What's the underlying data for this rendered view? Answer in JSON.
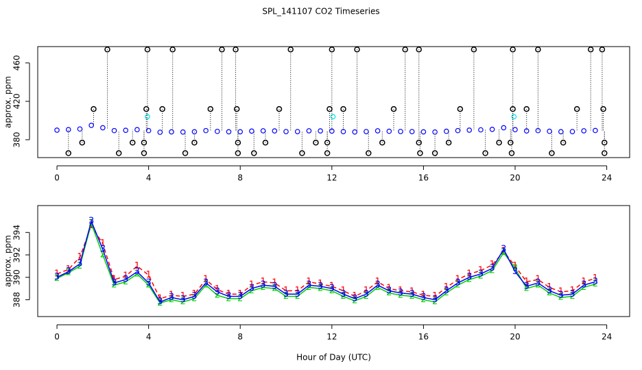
{
  "chart_data": [
    {
      "type": "scatter",
      "title": "SPL_141107  CO2 Timeseries",
      "ylabel": "approx. ppm",
      "xlim": [
        -0.84,
        25.0
      ],
      "xticks": [
        0,
        4,
        8,
        12,
        16,
        20,
        24
      ],
      "ylim": [
        361.4,
        477
      ],
      "yticks": [
        380,
        420,
        460
      ],
      "series": [
        {
          "color": "#0000ff",
          "x": [
            0,
            0.5,
            1,
            1.5,
            2,
            2.5,
            3,
            3.5,
            4,
            4.5,
            5,
            5.5,
            6,
            6.5,
            7,
            7.5,
            8,
            8.5,
            9,
            9.5,
            10,
            10.5,
            11,
            11.5,
            12,
            12.5,
            13,
            13.5,
            14,
            14.5,
            15,
            15.5,
            16,
            16.5,
            17,
            17.5,
            18,
            18.5,
            19,
            19.5,
            20,
            20.5,
            21,
            21.5,
            22,
            22.5,
            23,
            23.5
          ],
          "values": [
            390.0,
            390.5,
            391.2,
            395.0,
            392.5,
            389.5,
            389.8,
            390.5,
            389.5,
            387.8,
            388.2,
            388.0,
            388.3,
            389.5,
            388.7,
            388.3,
            388.3,
            389.0,
            389.3,
            389.2,
            388.5,
            388.5,
            389.3,
            389.2,
            389.0,
            388.5,
            388.1,
            388.5,
            389.3,
            388.8,
            388.6,
            388.5,
            388.2,
            388.0,
            388.8,
            389.5,
            390.0,
            390.3,
            390.8,
            392.5,
            390.5,
            389.2,
            389.5,
            388.8,
            388.4,
            388.5,
            389.3,
            389.6
          ]
        },
        {
          "color": "#00e5ee",
          "x": [
            3.95,
            12.05,
            19.95
          ],
          "values": [
            404,
            404,
            404
          ]
        },
        {
          "color": "#000000",
          "stems": true,
          "x": [
            2.2,
            3.95,
            5.05,
            7.2,
            7.8,
            10.2,
            12.0,
            13.1,
            15.2,
            15.8,
            18.2,
            19.9,
            21.0,
            23.3,
            23.8,
            1.6,
            3.9,
            4.6,
            6.7,
            7.85,
            9.7,
            11.9,
            12.5,
            14.7,
            17.6,
            19.9,
            20.5,
            22.7,
            23.85,
            1.1,
            3.3,
            3.8,
            6.0,
            7.9,
            9.1,
            11.3,
            11.8,
            14.2,
            15.8,
            17.1,
            19.3,
            19.8,
            22.1,
            23.9,
            0.5,
            2.7,
            3.8,
            5.6,
            7.9,
            8.6,
            10.7,
            11.8,
            13.6,
            15.85,
            16.5,
            18.7,
            19.85,
            21.6,
            23.9
          ],
          "values": [
            474,
            474,
            474,
            474,
            474,
            474,
            474,
            474,
            474,
            474,
            474,
            474,
            474,
            474,
            474,
            412,
            412,
            412,
            412,
            412,
            412,
            412,
            412,
            412,
            412,
            412,
            412,
            412,
            412,
            377,
            377,
            377,
            377,
            377,
            377,
            377,
            377,
            377,
            377,
            377,
            377,
            377,
            377,
            377,
            366,
            366,
            366,
            366,
            366,
            366,
            366,
            366,
            366,
            366,
            366,
            366,
            366,
            366,
            366
          ]
        }
      ]
    },
    {
      "type": "line",
      "ylabel": "approx. ppm",
      "xlabel": "Hour of Day (UTC)",
      "xlim": [
        -0.84,
        25.0
      ],
      "xticks": [
        0,
        4,
        8,
        12,
        16,
        20,
        24
      ],
      "ylim": [
        386.5,
        396.4
      ],
      "yticks": [
        388,
        390,
        392,
        394
      ],
      "x": [
        0,
        0.5,
        1,
        1.5,
        2,
        2.5,
        3,
        3.5,
        4,
        4.5,
        5,
        5.5,
        6,
        6.5,
        7,
        7.5,
        8,
        8.5,
        9,
        9.5,
        10,
        10.5,
        11,
        11.5,
        12,
        12.5,
        13,
        13.5,
        14,
        14.5,
        15,
        15.5,
        16,
        16.5,
        17,
        17.5,
        18,
        18.5,
        19,
        19.5,
        20,
        20.5,
        21,
        21.5,
        22,
        22.5,
        23,
        23.5
      ],
      "series": [
        {
          "marker": "1",
          "color": "#ff0000",
          "dashed": true,
          "values": [
            390.3,
            390.7,
            391.8,
            394.6,
            393.0,
            389.8,
            390.1,
            391.0,
            390.2,
            388.1,
            388.4,
            388.3,
            388.5,
            389.8,
            388.9,
            388.5,
            388.5,
            389.3,
            389.6,
            389.5,
            388.8,
            388.8,
            389.6,
            389.4,
            389.2,
            388.8,
            388.3,
            388.8,
            389.6,
            389.0,
            388.8,
            388.7,
            388.4,
            388.3,
            389.1,
            389.8,
            390.3,
            390.6,
            391.1,
            392.3,
            391.0,
            389.6,
            389.8,
            389.1,
            388.7,
            388.8,
            389.6,
            389.9
          ]
        },
        {
          "marker": "2",
          "color": "#00cd00",
          "dashed": false,
          "values": [
            389.9,
            390.4,
            391.0,
            394.8,
            392.0,
            389.3,
            389.6,
            390.3,
            389.3,
            387.7,
            388.0,
            387.8,
            388.1,
            389.3,
            388.4,
            388.1,
            388.1,
            388.8,
            389.1,
            389.0,
            388.3,
            388.3,
            389.1,
            389.0,
            388.8,
            388.3,
            387.9,
            388.3,
            389.1,
            388.6,
            388.4,
            388.3,
            388.0,
            387.8,
            388.6,
            389.3,
            389.8,
            390.1,
            390.6,
            392.2,
            390.8,
            389.0,
            389.3,
            388.6,
            388.2,
            388.3,
            389.1,
            389.4
          ]
        },
        {
          "marker": "3",
          "color": "#0000ff",
          "dashed": false,
          "values": [
            390.0,
            390.5,
            391.2,
            395.0,
            392.5,
            389.5,
            389.8,
            390.5,
            389.5,
            387.8,
            388.2,
            388.0,
            388.3,
            389.5,
            388.7,
            388.3,
            388.3,
            389.0,
            389.3,
            389.2,
            388.5,
            388.5,
            389.3,
            389.2,
            389.0,
            388.5,
            388.1,
            388.5,
            389.3,
            388.8,
            388.6,
            388.5,
            388.2,
            388.0,
            388.8,
            389.5,
            390.0,
            390.3,
            390.8,
            392.5,
            390.5,
            389.2,
            389.5,
            388.8,
            388.4,
            388.5,
            389.3,
            389.6
          ]
        }
      ]
    }
  ]
}
